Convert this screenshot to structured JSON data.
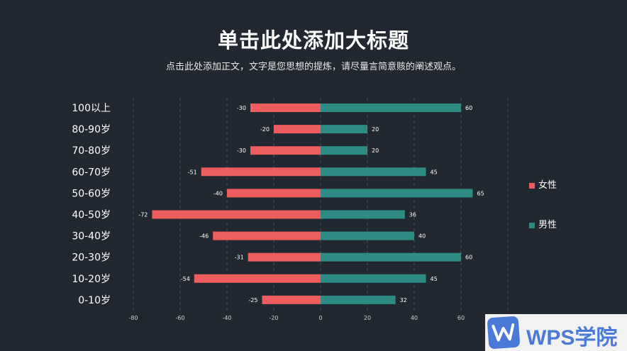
{
  "header": {
    "title": "单击此处添加大标题",
    "subtitle": "点击此处添加正文，文字是您思想的提炼，请尽量言简意赅的阐述观点。"
  },
  "chart_data": {
    "type": "bar",
    "orientation": "horizontal",
    "stacked_diverging": true,
    "categories": [
      "100以上",
      "80-90岁",
      "70-80岁",
      "60-70岁",
      "50-60岁",
      "40-50岁",
      "30-40岁",
      "20-30岁",
      "10-20岁",
      "0-10岁"
    ],
    "series": [
      {
        "name": "女性",
        "values": [
          -30,
          -20,
          -30,
          -51,
          -40,
          -72,
          -46,
          -31,
          -54,
          -25
        ],
        "color": "#ee5d5d"
      },
      {
        "name": "男性",
        "values": [
          60,
          20,
          20,
          45,
          65,
          36,
          40,
          60,
          45,
          32
        ],
        "color": "#2e8b84"
      }
    ],
    "xlim": [
      -80,
      80
    ],
    "xticks": [
      -80,
      -60,
      -40,
      -20,
      0,
      20,
      40,
      60,
      80
    ],
    "grid": "vertical dashed",
    "legend_position": "right",
    "data_labels": true
  },
  "watermark": {
    "text": "WPS学院"
  }
}
